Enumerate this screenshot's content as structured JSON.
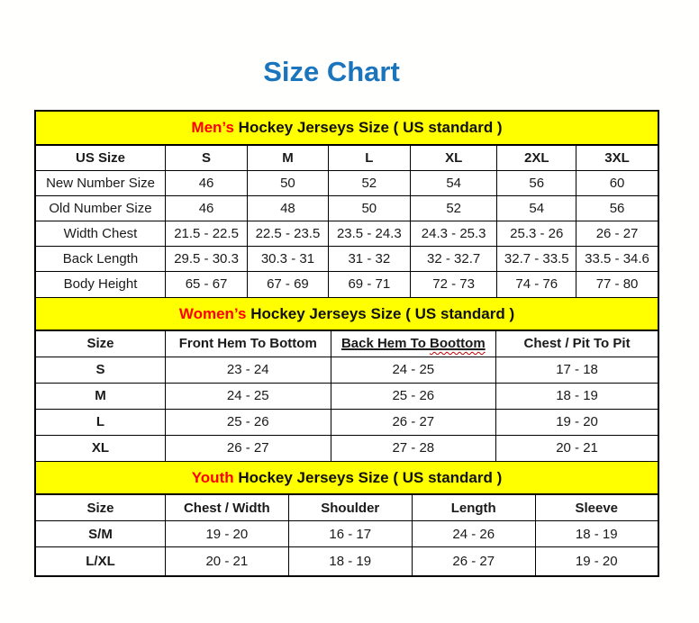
{
  "page_title": "Size Chart",
  "colors": {
    "title_blue": "#1b75bc",
    "band_yellow": "#ffff00",
    "highlight_red": "#ff0000",
    "text_black": "#1a1a1a",
    "squiggle_red": "#c00000"
  },
  "chart_data": [
    {
      "type": "table",
      "title": "Men’s Hockey Jerseys Size ( US standard )",
      "title_highlight": "Men’s",
      "title_rest": " Hockey Jerseys Size ( US standard )",
      "columns": [
        "US Size",
        "S",
        "M",
        "L",
        "XL",
        "2XL",
        "3XL"
      ],
      "rows": [
        [
          "New Number Size",
          "46",
          "50",
          "52",
          "54",
          "56",
          "60"
        ],
        [
          "Old Number Size",
          "46",
          "48",
          "50",
          "52",
          "54",
          "56"
        ],
        [
          "Width Chest",
          "21.5 - 22.5",
          "22.5 - 23.5",
          "23.5 - 24.3",
          "24.3 - 25.3",
          "25.3 - 26",
          "26 - 27"
        ],
        [
          "Back Length",
          "29.5 - 30.3",
          "30.3 - 31",
          "31 - 32",
          "32 - 32.7",
          "32.7 - 33.5",
          "33.5 - 34.6"
        ],
        [
          "Body Height",
          "65 - 67",
          "67 - 69",
          "69 - 71",
          "72 - 73",
          "74 - 76",
          "77 - 80"
        ]
      ],
      "label_bold": false,
      "col_widths": [
        "20.8%",
        "13.2%",
        "13.0%",
        "13.2%",
        "14.0%",
        "12.7%",
        "13.1%"
      ]
    },
    {
      "type": "table",
      "title": "Women’s Hockey Jerseys Size ( US standard )",
      "title_highlight": "Women’s",
      "title_rest": " Hockey Jerseys Size ( US standard )",
      "columns": [
        "Size",
        "Front Hem To Bottom",
        {
          "text": "Back Hem To Boottom",
          "underline": true,
          "squiggle_word": "Boottom"
        },
        "Chest / Pit To Pit"
      ],
      "rows": [
        [
          "S",
          "23 - 24",
          "24 - 25",
          "17 - 18"
        ],
        [
          "M",
          "24 - 25",
          "25 - 26",
          "18 - 19"
        ],
        [
          "L",
          "25 - 26",
          "26 - 27",
          "19 - 20"
        ],
        [
          "XL",
          "26 - 27",
          "27 - 28",
          "20 - 21"
        ]
      ],
      "label_bold": true,
      "col_widths": [
        "20.8%",
        "26.6%",
        "26.6%",
        "26.0%"
      ]
    },
    {
      "type": "table",
      "title": "Youth Hockey Jerseys Size ( US standard )",
      "title_highlight": "Youth",
      "title_rest": " Hockey Jerseys Size ( US standard )",
      "columns": [
        "Size",
        "Chest / Width",
        "Shoulder",
        "Length",
        "Sleeve"
      ],
      "rows": [
        [
          "S/M",
          "19 - 20",
          "16 - 17",
          "24 - 26",
          "18 - 19"
        ],
        [
          "L/XL",
          "20 - 21",
          "18 - 19",
          "26 - 27",
          "19 - 20"
        ]
      ],
      "label_bold": true,
      "col_widths": [
        "20.8%",
        "19.8%",
        "19.9%",
        "19.8%",
        "19.7%"
      ]
    }
  ]
}
